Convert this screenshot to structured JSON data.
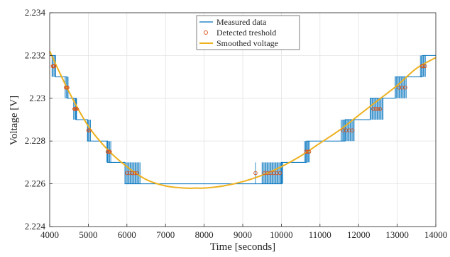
{
  "chart_data": {
    "type": "line",
    "title": "",
    "xlabel": "Time [seconds]",
    "ylabel": "Voltage [V]",
    "xlim": [
      4000,
      14000
    ],
    "ylim": [
      2.224,
      2.234
    ],
    "xticks": [
      4000,
      5000,
      6000,
      7000,
      8000,
      9000,
      10000,
      11000,
      12000,
      13000,
      14000
    ],
    "yticks": [
      2.224,
      2.226,
      2.228,
      2.23,
      2.232,
      2.234
    ],
    "ytick_labels": [
      "2.224",
      "2.226",
      "2.228",
      "2.23",
      "2.232",
      "2.234"
    ],
    "grid": true,
    "legend_position": "top-center",
    "series": [
      {
        "name": "Measured data",
        "kind": "step",
        "color": "#0072BD",
        "steps": [
          {
            "x_from": 4000,
            "x_to": 4150,
            "level": 2.232
          },
          {
            "x_from": 4150,
            "x_to": 4450,
            "level": 2.231
          },
          {
            "x_from": 4450,
            "x_to": 4680,
            "level": 2.23
          },
          {
            "x_from": 4680,
            "x_to": 4980,
            "level": 2.229
          },
          {
            "x_from": 4980,
            "x_to": 5500,
            "level": 2.228
          },
          {
            "x_from": 5500,
            "x_to": 5950,
            "level": 2.227
          },
          {
            "x_from": 5950,
            "x_to": 10000,
            "level": 2.226
          },
          {
            "x_from": 10000,
            "x_to": 10650,
            "level": 2.227
          },
          {
            "x_from": 10650,
            "x_to": 11650,
            "level": 2.228
          },
          {
            "x_from": 11650,
            "x_to": 12300,
            "level": 2.229
          },
          {
            "x_from": 12300,
            "x_to": 12950,
            "level": 2.23
          },
          {
            "x_from": 12950,
            "x_to": 13650,
            "level": 2.231
          },
          {
            "x_from": 13650,
            "x_to": 14000,
            "level": 2.232
          }
        ],
        "noisy_bands": [
          {
            "x_from": 4060,
            "x_to": 4160,
            "low": 2.231,
            "high": 2.232
          },
          {
            "x_from": 4400,
            "x_to": 4500,
            "low": 2.23,
            "high": 2.231
          },
          {
            "x_from": 4620,
            "x_to": 4720,
            "low": 2.229,
            "high": 2.23
          },
          {
            "x_from": 4980,
            "x_to": 5060,
            "low": 2.228,
            "high": 2.229
          },
          {
            "x_from": 5480,
            "x_to": 5600,
            "low": 2.227,
            "high": 2.228
          },
          {
            "x_from": 5980,
            "x_to": 6350,
            "low": 2.226,
            "high": 2.227
          },
          {
            "x_from": 9330,
            "x_to": 9350,
            "low": 2.226,
            "high": 2.227
          },
          {
            "x_from": 9500,
            "x_to": 10050,
            "low": 2.226,
            "high": 2.227
          },
          {
            "x_from": 10600,
            "x_to": 10750,
            "low": 2.227,
            "high": 2.228
          },
          {
            "x_from": 11550,
            "x_to": 11900,
            "low": 2.228,
            "high": 2.229
          },
          {
            "x_from": 12300,
            "x_to": 12650,
            "low": 2.229,
            "high": 2.23
          },
          {
            "x_from": 12950,
            "x_to": 13250,
            "low": 2.23,
            "high": 2.231
          },
          {
            "x_from": 13600,
            "x_to": 13750,
            "low": 2.231,
            "high": 2.232
          }
        ]
      },
      {
        "name": "Detected treshold",
        "kind": "scatter",
        "color": "#D95319",
        "marker": "open-circle",
        "points": [
          [
            4080,
            2.2315
          ],
          [
            4100,
            2.2315
          ],
          [
            4120,
            2.2315
          ],
          [
            4420,
            2.2305
          ],
          [
            4440,
            2.2305
          ],
          [
            4460,
            2.2305
          ],
          [
            4640,
            2.2295
          ],
          [
            4660,
            2.2295
          ],
          [
            4680,
            2.2295
          ],
          [
            4700,
            2.2295
          ],
          [
            5000,
            2.2285
          ],
          [
            5030,
            2.2285
          ],
          [
            5500,
            2.2275
          ],
          [
            5530,
            2.2275
          ],
          [
            5560,
            2.2275
          ],
          [
            6000,
            2.2265
          ],
          [
            6070,
            2.2265
          ],
          [
            6140,
            2.2265
          ],
          [
            6200,
            2.2265
          ],
          [
            6260,
            2.2265
          ],
          [
            9330,
            2.2265
          ],
          [
            9560,
            2.2265
          ],
          [
            9640,
            2.2265
          ],
          [
            9720,
            2.2265
          ],
          [
            9800,
            2.2265
          ],
          [
            9880,
            2.2265
          ],
          [
            9960,
            2.2265
          ],
          [
            10640,
            2.2275
          ],
          [
            10680,
            2.2275
          ],
          [
            10720,
            2.2275
          ],
          [
            11600,
            2.2285
          ],
          [
            11680,
            2.2285
          ],
          [
            11760,
            2.2285
          ],
          [
            11840,
            2.2285
          ],
          [
            12380,
            2.2295
          ],
          [
            12440,
            2.2295
          ],
          [
            12500,
            2.2295
          ],
          [
            12560,
            2.2295
          ],
          [
            13050,
            2.2305
          ],
          [
            13130,
            2.2305
          ],
          [
            13210,
            2.2305
          ],
          [
            13640,
            2.2315
          ],
          [
            13680,
            2.2315
          ],
          [
            13720,
            2.2315
          ]
        ]
      },
      {
        "name": "Smoothed voltage",
        "kind": "line",
        "color": "#EDB120",
        "x": [
          4000,
          4500,
          5000,
          5500,
          6000,
          6500,
          7000,
          7500,
          7800,
          8000,
          8500,
          9000,
          9500,
          10000,
          10500,
          11000,
          11500,
          12000,
          12500,
          13000,
          13500,
          14000
        ],
        "y": [
          2.2322,
          2.2303,
          2.2287,
          2.2276,
          2.2268,
          2.2262,
          2.2259,
          2.2258,
          2.2258,
          2.2258,
          2.2259,
          2.2261,
          2.2264,
          2.2268,
          2.2273,
          2.2279,
          2.2285,
          2.2292,
          2.2299,
          2.2306,
          2.2314,
          2.2319
        ]
      }
    ]
  }
}
